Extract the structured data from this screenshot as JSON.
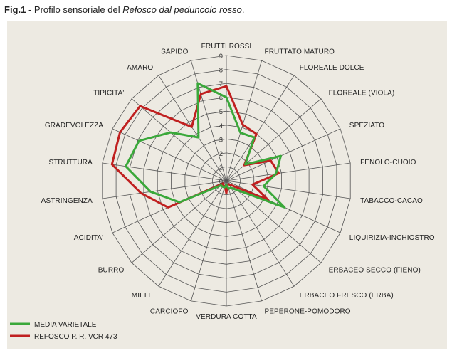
{
  "caption": {
    "fig": "Fig.1",
    "sep": " - ",
    "text": "Profilo sensoriale del ",
    "italic": "Refosco dal peduncolo rosso",
    "end": "."
  },
  "chart_data": {
    "type": "radar",
    "title": "Profilo sensoriale del Refosco dal peduncolo rosso",
    "rmin": 0,
    "rmax": 9,
    "ticks": [
      0,
      1,
      2,
      3,
      4,
      5,
      6,
      7,
      8,
      9
    ],
    "categories": [
      "FRUTTI ROSSI",
      "FRUTTATO MATURO",
      "FLOREALE DOLCE",
      "FLOREALE (VIOLA)",
      "SPEZIATO",
      "FENOLO-CUOIO",
      "TABACCO-CACAO",
      "LIQUIRIZIA-INCHIOSTRO",
      "ERBACEO SECCO (FIENO)",
      "ERBACEO FRESCO (ERBA)",
      "PEPERONE-POMODORO",
      "VERDURA COTTA",
      "CARCIOFO",
      "MIELE",
      "BURRO",
      "ACIDITA'",
      "ASTRINGENZA",
      "STRUTTURA",
      "GRADEVOLEZZA",
      "TIPICITA'",
      "AMARO",
      "SAPIDO"
    ],
    "series": [
      {
        "name": "MEDIA VARIETALE",
        "color": "#3aa83a",
        "values": [
          6.0,
          3.6,
          3.7,
          1.8,
          4.3,
          3.6,
          2.7,
          4.6,
          1.0,
          0.6,
          0.6,
          0.3,
          0.5,
          0.5,
          0.5,
          3.7,
          5.5,
          7.3,
          6.9,
          5.3,
          3.7,
          7.3
        ]
      },
      {
        "name": "REFOSCO P. R. VCR 473",
        "color": "#c02020",
        "values": [
          6.8,
          4.2,
          4.0,
          1.7,
          3.5,
          3.8,
          1.9,
          3.3,
          0.5,
          0.3,
          0.3,
          0.9,
          0.4,
          0.4,
          0.3,
          4.6,
          6.2,
          8.3,
          8.4,
          8.2,
          4.6,
          6.5
        ]
      }
    ],
    "legend": "bottom-left",
    "grid": true
  }
}
